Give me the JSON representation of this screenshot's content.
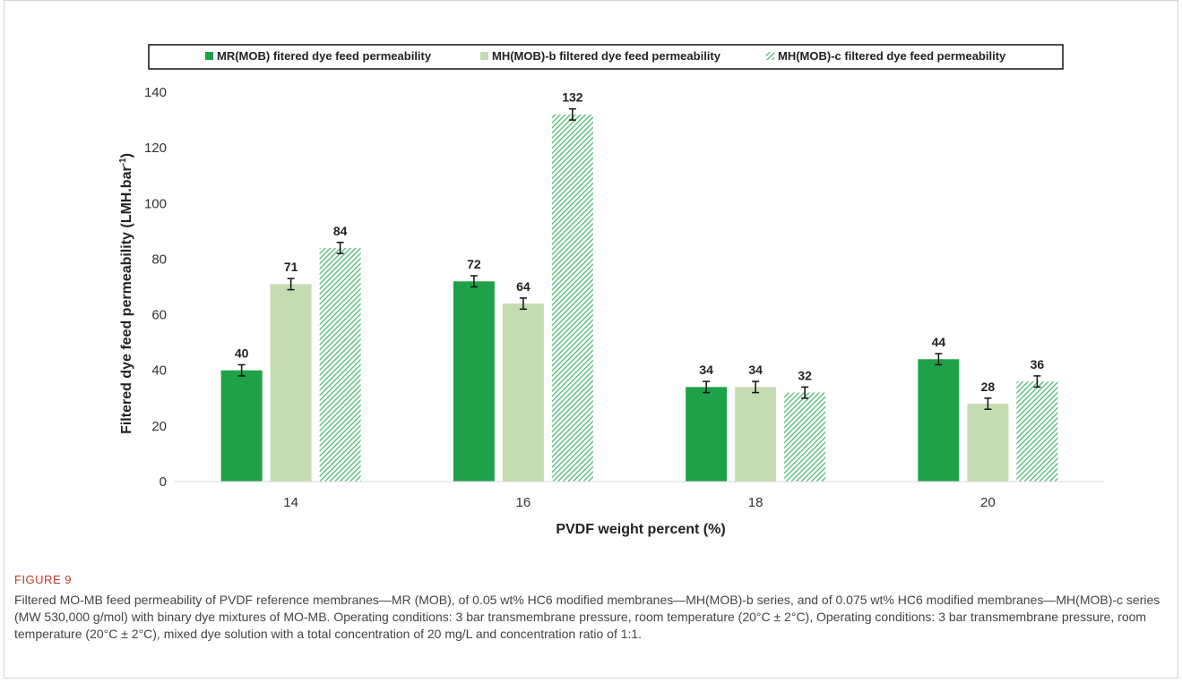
{
  "chart_data": {
    "type": "bar",
    "categories": [
      "14",
      "16",
      "18",
      "20"
    ],
    "series": [
      {
        "name": "MR(MOB) fitered dye feed permeability",
        "values": [
          40,
          72,
          34,
          44
        ],
        "errors": [
          2,
          2,
          2,
          2
        ],
        "color": "#1fa14a",
        "pattern": "solid"
      },
      {
        "name": "MH(MOB)-b filtered dye feed permeability",
        "values": [
          71,
          64,
          34,
          28
        ],
        "errors": [
          2,
          2,
          2,
          2
        ],
        "color": "#c5dcb3",
        "pattern": "solid"
      },
      {
        "name": "MH(MOB)-c filtered dye feed permeability",
        "values": [
          84,
          132,
          32,
          36
        ],
        "errors": [
          2,
          2,
          2,
          2
        ],
        "color": "#3fb468",
        "pattern": "hatch"
      }
    ],
    "data_labels": [
      [
        "40",
        "72",
        "34",
        "44"
      ],
      [
        "71",
        "64",
        "34",
        "28"
      ],
      [
        "84",
        "132",
        "32",
        "36"
      ]
    ],
    "xlabel": "PVDF weight percent (%)",
    "ylabel": "Filtered dye feed permeability (LMH.bar",
    "ylabel_sup": "-1",
    "ylabel_close": ")",
    "ylim": [
      0,
      140
    ],
    "yticks": [
      0,
      20,
      40,
      60,
      80,
      100,
      120,
      140
    ],
    "grid": false,
    "legend_position": "top"
  },
  "caption": {
    "label": "FIGURE 9",
    "text": "Filtered MO-MB feed permeability of PVDF reference membranes—MR (MOB), of 0.05 wt% HC6 modified membranes—MH(MOB)-b series, and of 0.075 wt% HC6 modified membranes—MH(MOB)-c series (MW 530,000 g/mol) with binary dye mixtures of MO-MB. Operating conditions: 3 bar transmembrane pressure, room temperature (20°C ± 2°C), Operating conditions: 3 bar transmembrane pressure, room temperature (20°C ± 2°C), mixed dye solution with a total concentration of 20 mg/L and concentration ratio of 1:1."
  }
}
